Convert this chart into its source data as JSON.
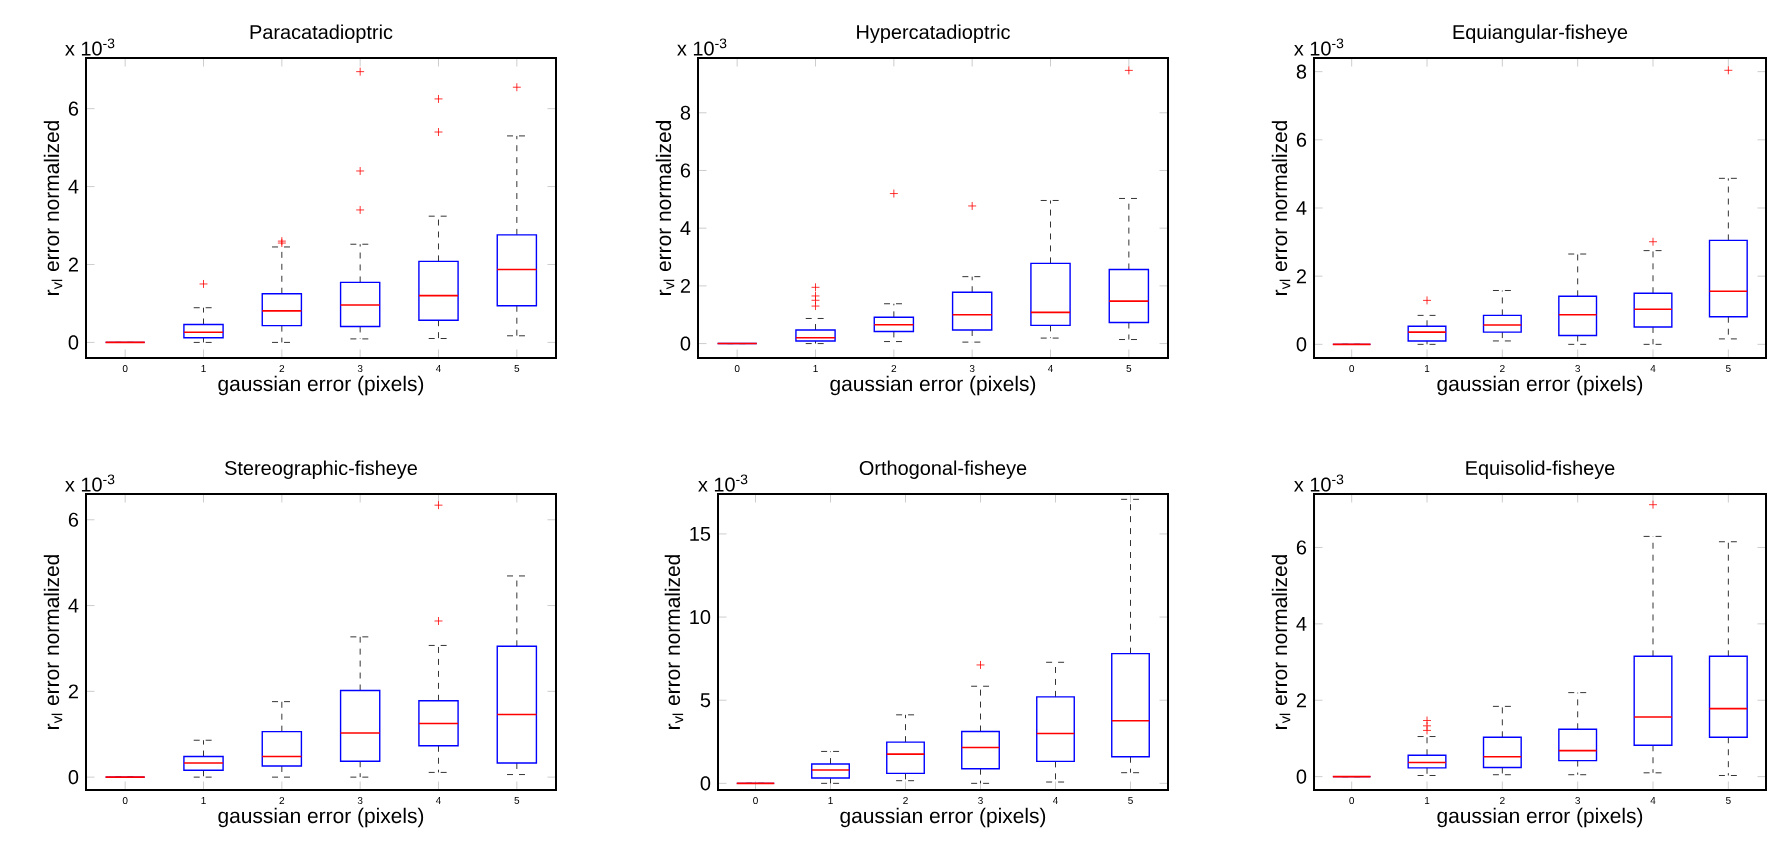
{
  "chart_data": [
    {
      "type": "box",
      "title": "Paracatadioptric",
      "xlabel": "gaussian error (pixels)",
      "ylabel": "r$_{vl}$ error normalized",
      "annotations": [
        "x 10$^{-3}$"
      ],
      "categories": [
        "0",
        "1",
        "2",
        "3",
        "4",
        "5"
      ],
      "ylim": [
        -0.4,
        7.3
      ],
      "yticks": [
        0,
        2,
        4,
        6
      ],
      "series": [
        {
          "color": "#0000ff",
          "boxes": [
            {
              "low": 0,
              "q1": 0,
              "median": 0,
              "q3": 0,
              "high": 0
            },
            {
              "low": 0,
              "q1": 0.12,
              "median": 0.26,
              "q3": 0.46,
              "high": 0.89,
              "outliers": [
                1.5
              ]
            },
            {
              "low": 0,
              "q1": 0.43,
              "median": 0.81,
              "q3": 1.25,
              "high": 2.45,
              "outliers": [
                2.55,
                2.6
              ]
            },
            {
              "low": 0.09,
              "q1": 0.41,
              "median": 0.96,
              "q3": 1.54,
              "high": 2.52,
              "outliers": [
                3.4,
                4.4,
                6.95
              ]
            },
            {
              "low": 0.1,
              "q1": 0.57,
              "median": 1.2,
              "q3": 2.08,
              "high": 3.24,
              "outliers": [
                5.4,
                6.25
              ]
            },
            {
              "low": 0.17,
              "q1": 0.94,
              "median": 1.87,
              "q3": 2.76,
              "high": 5.3,
              "outliers": [
                6.55
              ]
            }
          ]
        }
      ]
    },
    {
      "type": "box",
      "title": "Hypercatadioptric",
      "xlabel": "gaussian error (pixels)",
      "ylabel": "r$_{vl}$ error normalized",
      "annotations": [
        "x 10$^{-3}$"
      ],
      "categories": [
        "0",
        "1",
        "2",
        "3",
        "4",
        "5"
      ],
      "ylim": [
        -0.5,
        9.9
      ],
      "yticks": [
        0,
        2,
        4,
        6,
        8
      ],
      "series": [
        {
          "color": "#0000ff",
          "boxes": [
            {
              "low": 0,
              "q1": 0,
              "median": 0,
              "q3": 0,
              "high": 0
            },
            {
              "low": 0,
              "q1": 0.09,
              "median": 0.2,
              "q3": 0.47,
              "high": 0.87,
              "outliers": [
                1.3,
                1.5,
                1.65,
                1.95
              ]
            },
            {
              "low": 0.07,
              "q1": 0.42,
              "median": 0.65,
              "q3": 0.91,
              "high": 1.38,
              "outliers": [
                5.2
              ]
            },
            {
              "low": 0.05,
              "q1": 0.47,
              "median": 1.0,
              "q3": 1.78,
              "high": 2.32,
              "outliers": [
                4.77
              ]
            },
            {
              "low": 0.19,
              "q1": 0.63,
              "median": 1.08,
              "q3": 2.78,
              "high": 4.96
            },
            {
              "low": 0.14,
              "q1": 0.73,
              "median": 1.47,
              "q3": 2.57,
              "high": 5.03,
              "outliers": [
                9.47
              ]
            }
          ]
        }
      ]
    },
    {
      "type": "box",
      "title": "Equiangular-fisheye",
      "xlabel": "gaussian error (pixels)",
      "ylabel": "r$_{vl}$ error normalized",
      "annotations": [
        "x 10$^{-3}$"
      ],
      "categories": [
        "0",
        "1",
        "2",
        "3",
        "4",
        "5"
      ],
      "ylim": [
        -0.4,
        8.4
      ],
      "yticks": [
        0,
        2,
        4,
        6,
        8
      ],
      "series": [
        {
          "color": "#0000ff",
          "boxes": [
            {
              "low": 0,
              "q1": 0,
              "median": 0,
              "q3": 0,
              "high": 0
            },
            {
              "low": 0,
              "q1": 0.1,
              "median": 0.36,
              "q3": 0.53,
              "high": 0.85,
              "outliers": [
                1.29
              ]
            },
            {
              "low": 0.1,
              "q1": 0.36,
              "median": 0.57,
              "q3": 0.85,
              "high": 1.58
            },
            {
              "low": 0,
              "q1": 0.26,
              "median": 0.87,
              "q3": 1.41,
              "high": 2.65
            },
            {
              "low": 0,
              "q1": 0.51,
              "median": 1.03,
              "q3": 1.5,
              "high": 2.75,
              "outliers": [
                3.01
              ]
            },
            {
              "low": 0.16,
              "q1": 0.81,
              "median": 1.56,
              "q3": 3.05,
              "high": 4.87,
              "outliers": [
                8.04
              ]
            }
          ]
        }
      ]
    },
    {
      "type": "box",
      "title": "Stereographic-fisheye",
      "xlabel": "gaussian error (pixels)",
      "ylabel": "r$_{vl}$ error normalized",
      "annotations": [
        "x 10$^{-3}$"
      ],
      "categories": [
        "0",
        "1",
        "2",
        "3",
        "4",
        "5"
      ],
      "ylim": [
        -0.3,
        6.6
      ],
      "yticks": [
        0,
        2,
        4,
        6
      ],
      "series": [
        {
          "color": "#0000ff",
          "boxes": [
            {
              "low": 0,
              "q1": 0,
              "median": 0,
              "q3": 0,
              "high": 0
            },
            {
              "low": 0,
              "q1": 0.16,
              "median": 0.33,
              "q3": 0.48,
              "high": 0.86
            },
            {
              "low": 0,
              "q1": 0.26,
              "median": 0.48,
              "q3": 1.06,
              "high": 1.76
            },
            {
              "low": 0,
              "q1": 0.37,
              "median": 1.03,
              "q3": 2.02,
              "high": 3.27
            },
            {
              "low": 0.11,
              "q1": 0.73,
              "median": 1.25,
              "q3": 1.78,
              "high": 3.07,
              "outliers": [
                3.64,
                6.34
              ]
            },
            {
              "low": 0.06,
              "q1": 0.33,
              "median": 1.46,
              "q3": 3.05,
              "high": 4.69
            }
          ]
        }
      ]
    },
    {
      "type": "box",
      "title": "Orthogonal-fisheye",
      "xlabel": "gaussian error (pixels)",
      "ylabel": "r$_{vl}$ error normalized",
      "annotations": [
        "x 10$^{-3}$"
      ],
      "categories": [
        "0",
        "1",
        "2",
        "3",
        "4",
        "5"
      ],
      "ylim": [
        -0.4,
        17.4
      ],
      "yticks": [
        0,
        5,
        10,
        15
      ],
      "series": [
        {
          "color": "#0000ff",
          "boxes": [
            {
              "low": 0,
              "q1": 0,
              "median": 0,
              "q3": 0,
              "high": 0
            },
            {
              "low": 0,
              "q1": 0.32,
              "median": 0.8,
              "q3": 1.16,
              "high": 1.92
            },
            {
              "low": 0.16,
              "q1": 0.6,
              "median": 1.76,
              "q3": 2.48,
              "high": 4.12
            },
            {
              "low": 0,
              "q1": 0.88,
              "median": 2.16,
              "q3": 3.12,
              "high": 5.84,
              "outliers": [
                7.12
              ]
            },
            {
              "low": 0.08,
              "q1": 1.32,
              "median": 3.0,
              "q3": 5.2,
              "high": 7.28
            },
            {
              "low": 0.64,
              "q1": 1.6,
              "median": 3.76,
              "q3": 7.8,
              "high": 17.08
            }
          ]
        }
      ]
    },
    {
      "type": "box",
      "title": "Equisolid-fisheye",
      "xlabel": "gaussian error (pixels)",
      "ylabel": "r$_{vl}$ error normalized",
      "annotations": [
        "x 10$^{-3}$"
      ],
      "categories": [
        "0",
        "1",
        "2",
        "3",
        "4",
        "5"
      ],
      "ylim": [
        -0.35,
        7.4
      ],
      "yticks": [
        0,
        2,
        4,
        6
      ],
      "series": [
        {
          "color": "#0000ff",
          "boxes": [
            {
              "low": 0,
              "q1": 0,
              "median": 0,
              "q3": 0,
              "high": 0
            },
            {
              "low": 0.03,
              "q1": 0.23,
              "median": 0.37,
              "q3": 0.56,
              "high": 1.05,
              "outliers": [
                1.21,
                1.33,
                1.47
              ]
            },
            {
              "low": 0.05,
              "q1": 0.24,
              "median": 0.52,
              "q3": 1.03,
              "high": 1.84
            },
            {
              "low": 0.05,
              "q1": 0.42,
              "median": 0.68,
              "q3": 1.24,
              "high": 2.2
            },
            {
              "low": 0.1,
              "q1": 0.82,
              "median": 1.56,
              "q3": 3.15,
              "high": 6.29,
              "outliers": [
                7.12
              ]
            },
            {
              "low": 0.03,
              "q1": 1.03,
              "median": 1.78,
              "q3": 3.15,
              "high": 6.15
            }
          ]
        }
      ]
    }
  ]
}
